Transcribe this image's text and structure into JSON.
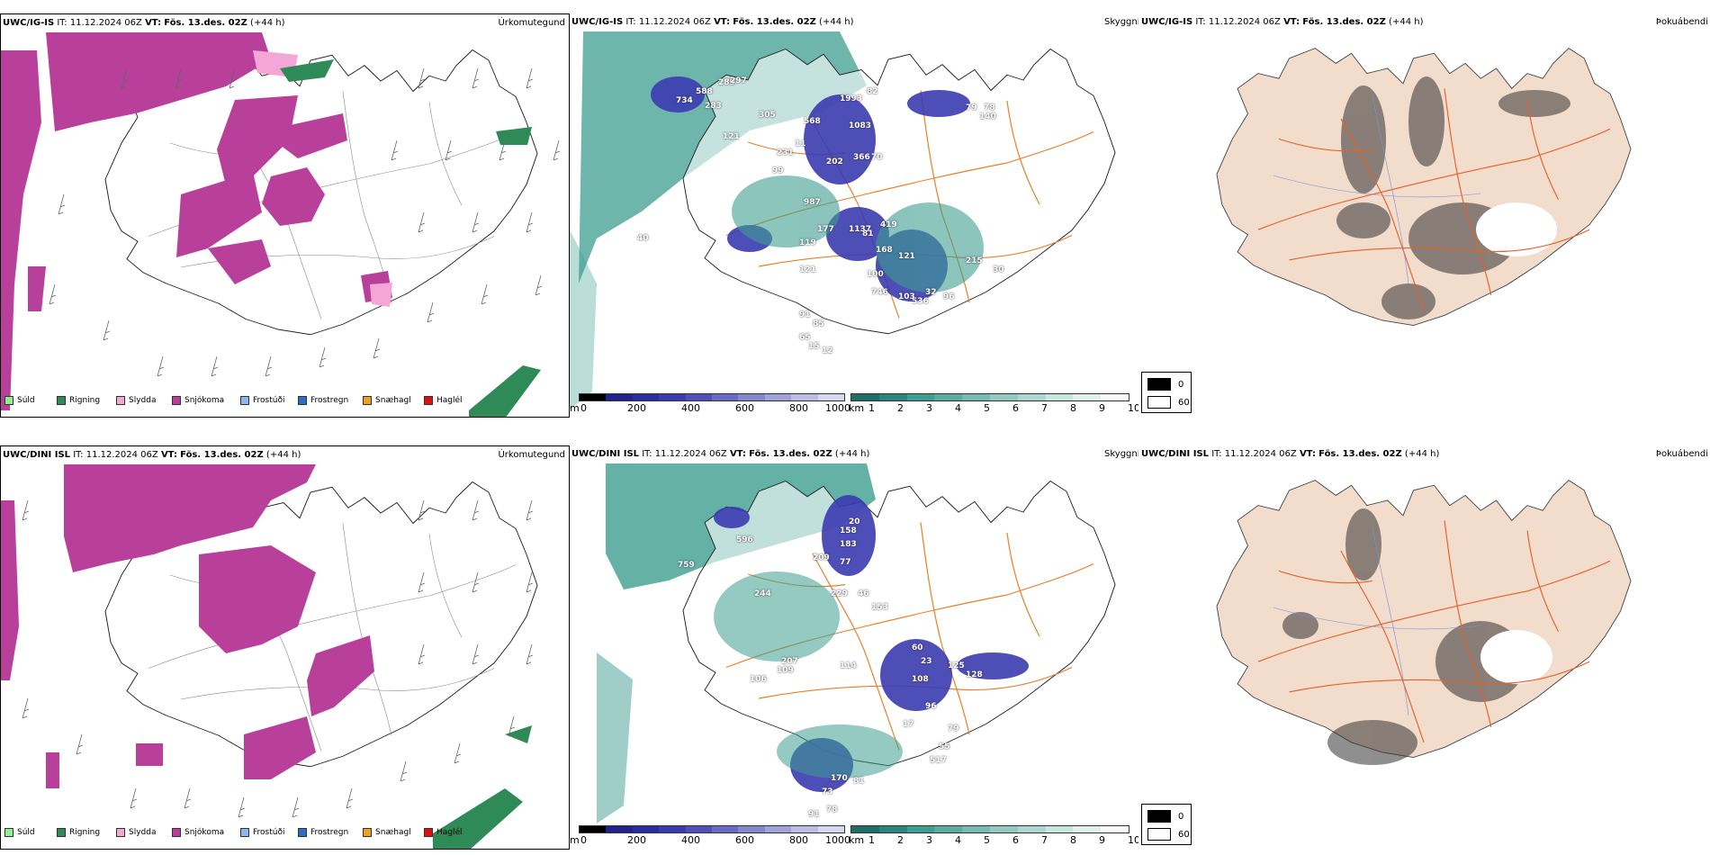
{
  "rows": [
    {
      "model": "UWC/IG-IS",
      "it_label": "IT:",
      "it_value": "11.12.2024 06Z",
      "vt_label": "VT:",
      "vt_value": "Fös. 13.des. 02Z",
      "lead": "(+44 h)",
      "precip_title": "Úrkomutegund",
      "cloud_title": "Skyggni",
      "fog_title": "Þokuábendi",
      "cloud_labels": [
        "734",
        "588",
        "289",
        "283",
        "297",
        "305",
        "121",
        "568",
        "1993",
        "82",
        "1083",
        "231",
        "99",
        "11",
        "202",
        "366",
        "70",
        "987",
        "177",
        "119",
        "121",
        "1137",
        "81",
        "419",
        "168",
        "121",
        "100",
        "746",
        "536",
        "103",
        "32",
        "96",
        "91",
        "85",
        "65",
        "15",
        "12",
        "79",
        "78",
        "215",
        "30",
        "40",
        "140"
      ]
    },
    {
      "model": "UWC/DINI ISL",
      "it_label": "IT:",
      "it_value": "11.12.2024 06Z",
      "vt_label": "VT:",
      "vt_value": "Fös. 13.des. 02Z",
      "lead": "(+44 h)",
      "precip_title": "Úrkomutegund",
      "cloud_title": "Skyggni",
      "fog_title": "Þokuábendi",
      "cloud_labels": [
        "596",
        "759",
        "158",
        "20",
        "183",
        "209",
        "77",
        "244",
        "229",
        "46",
        "153",
        "207",
        "114",
        "109",
        "106",
        "108",
        "60",
        "125",
        "128",
        "96",
        "17",
        "79",
        "55",
        "517",
        "170",
        "81",
        "73",
        "78",
        "91",
        "23"
      ]
    }
  ],
  "precip_legend": [
    {
      "label": "Súld",
      "color": "#90ee90"
    },
    {
      "label": "Rigning",
      "color": "#2e8b57"
    },
    {
      "label": "Slydda",
      "color": "#f4a6d7"
    },
    {
      "label": "Snjókoma",
      "color": "#b8409a"
    },
    {
      "label": "Frostúði",
      "color": "#87b8f0"
    },
    {
      "label": "Frostregn",
      "color": "#2a6fc9"
    },
    {
      "label": "Snæhagl",
      "color": "#f0a020"
    },
    {
      "label": "Haglél",
      "color": "#e01010"
    }
  ],
  "cloud_base_bar": {
    "unit": "m",
    "ticks": [
      "0",
      "200",
      "400",
      "600",
      "800",
      "1000"
    ]
  },
  "visibility_bar": {
    "unit": "km",
    "ticks": [
      "1",
      "2",
      "3",
      "4",
      "5",
      "6",
      "7",
      "8",
      "9",
      "10"
    ]
  },
  "fog_legend": [
    "0",
    "60"
  ],
  "colors": {
    "snow": "#b8409a",
    "sleet": "#f4a6d7",
    "rain": "#2e8b57",
    "vis": "#3d9e90",
    "cloud": "#3b3bb0",
    "land": "#f2dccb",
    "road": "#e6602a"
  }
}
